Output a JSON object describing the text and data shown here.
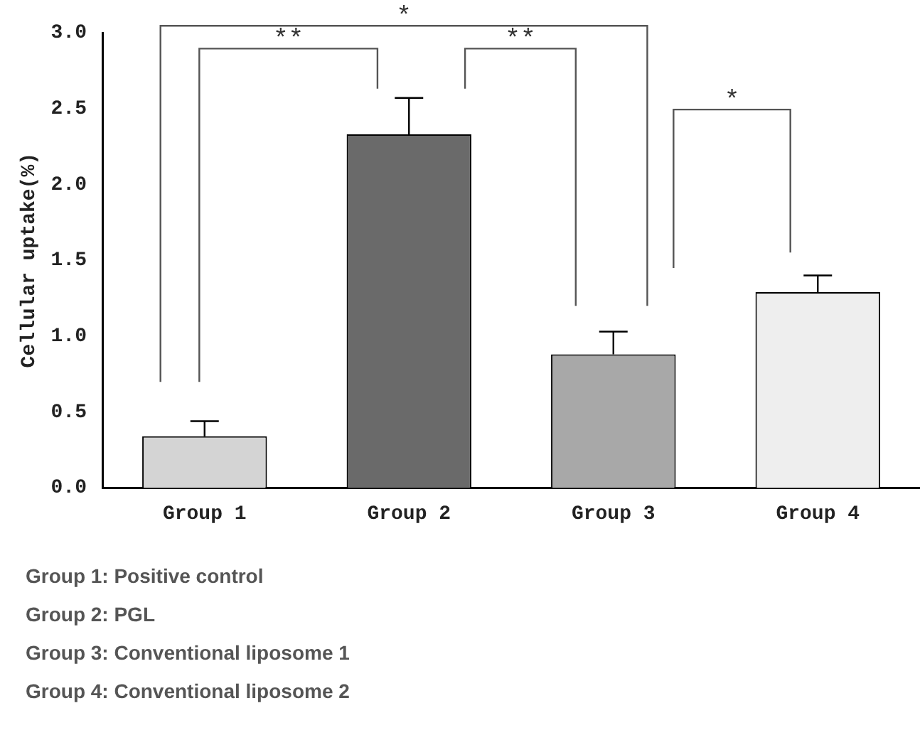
{
  "chart_data": {
    "type": "bar",
    "ylabel": "Cellular uptake(%)",
    "categories": [
      "Group 1",
      "Group 2",
      "Group 3",
      "Group 4"
    ],
    "values": [
      0.34,
      2.33,
      0.88,
      1.29
    ],
    "colors": [
      "#d4d4d4",
      "#6a6a6a",
      "#a8a8a8",
      "#eeeeee"
    ],
    "errors": [
      [
        0.34,
        0.44
      ],
      [
        2.33,
        2.57
      ],
      [
        0.88,
        1.03
      ],
      [
        1.29,
        1.4
      ]
    ],
    "ylim": [
      0,
      3
    ],
    "yticks": [
      {
        "value": 0,
        "label": "0.0"
      },
      {
        "value": 0.5,
        "label": "0.5"
      },
      {
        "value": 1,
        "label": "1.0"
      },
      {
        "value": 1.5,
        "label": "1.5"
      },
      {
        "value": 2,
        "label": "2.0"
      },
      {
        "value": 2.5,
        "label": "2.5"
      },
      {
        "value": 3,
        "label": "3.0"
      }
    ],
    "grid": false,
    "legend": false,
    "annotations": [
      "**",
      "*",
      "**",
      "*",
      "Group 1: Positive control",
      "Group 2: PGL",
      "Group 3: Conventional liposome 1",
      "Group 4: Conventional liposome 2"
    ]
  }
}
